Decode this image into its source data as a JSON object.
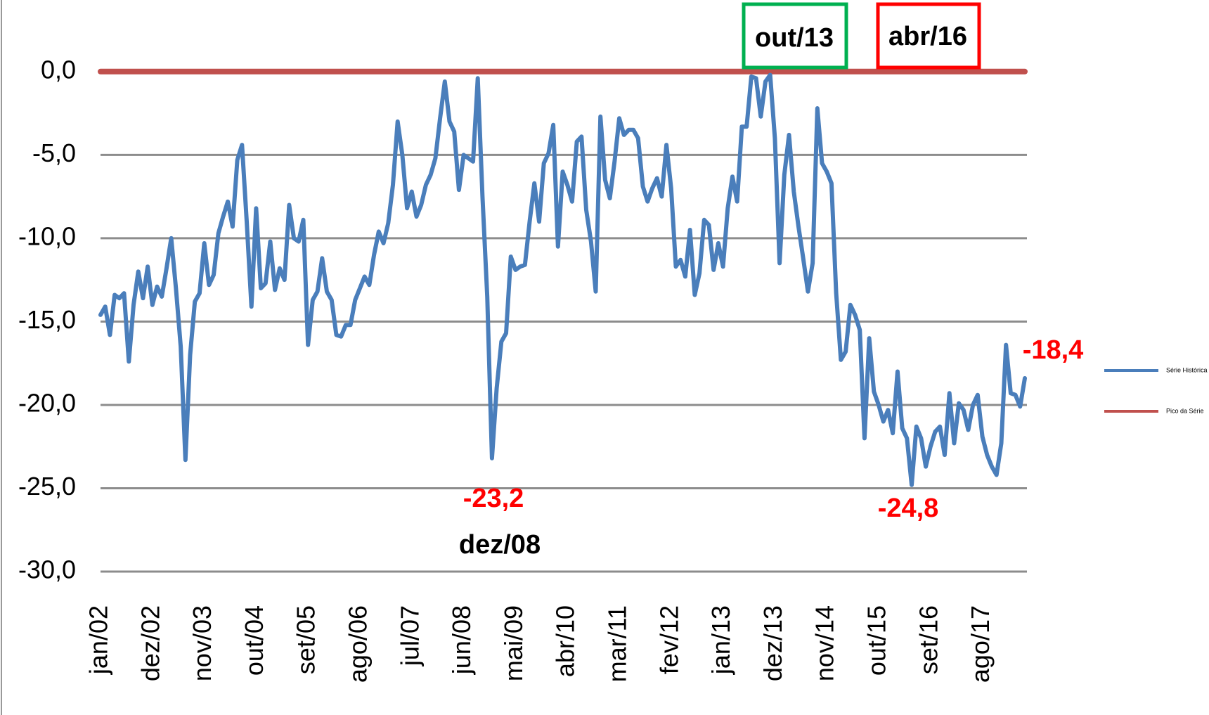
{
  "chart_data": {
    "type": "line",
    "categories": [
      "jan/02",
      null,
      null,
      null,
      null,
      null,
      null,
      null,
      null,
      null,
      null,
      "dez/02",
      null,
      null,
      null,
      null,
      null,
      null,
      null,
      null,
      null,
      null,
      "nov/03",
      null,
      null,
      null,
      null,
      null,
      null,
      null,
      null,
      null,
      null,
      "out/04",
      null,
      null,
      null,
      null,
      null,
      null,
      null,
      null,
      null,
      null,
      "set/05",
      null,
      null,
      null,
      null,
      null,
      null,
      null,
      null,
      null,
      null,
      "ago/06",
      null,
      null,
      null,
      null,
      null,
      null,
      null,
      null,
      null,
      null,
      "jul/07",
      null,
      null,
      null,
      null,
      null,
      null,
      null,
      null,
      null,
      null,
      "jun/08",
      null,
      null,
      null,
      null,
      null,
      null,
      null,
      null,
      null,
      null,
      "mai/09",
      null,
      null,
      null,
      null,
      null,
      null,
      null,
      null,
      null,
      null,
      "abr/10",
      null,
      null,
      null,
      null,
      null,
      null,
      null,
      null,
      null,
      null,
      "mar/11",
      null,
      null,
      null,
      null,
      null,
      null,
      null,
      null,
      null,
      null,
      "fev/12",
      null,
      null,
      null,
      null,
      null,
      null,
      null,
      null,
      null,
      null,
      "jan/13",
      null,
      null,
      null,
      null,
      null,
      null,
      null,
      null,
      null,
      null,
      "dez/13",
      null,
      null,
      null,
      null,
      null,
      null,
      null,
      null,
      null,
      null,
      "nov/14",
      null,
      null,
      null,
      null,
      null,
      null,
      null,
      null,
      null,
      null,
      "out/15",
      null,
      null,
      null,
      null,
      null,
      null,
      null,
      null,
      null,
      null,
      "set/16",
      null,
      null,
      null,
      null,
      null,
      null,
      null,
      null,
      null,
      null,
      "ago/17",
      null,
      null,
      null,
      null,
      null,
      null,
      null,
      null,
      null
    ],
    "series": [
      {
        "name": "Série Histórica",
        "color": "#4a7ebb",
        "values": [
          -14.6,
          -14.1,
          -15.8,
          -13.4,
          -13.6,
          -13.3,
          -17.4,
          -14.0,
          -12.0,
          -13.6,
          -11.7,
          -14.0,
          -12.9,
          -13.5,
          -11.8,
          -10.0,
          -13.0,
          -16.5,
          -23.3,
          -17.0,
          -13.8,
          -13.3,
          -10.3,
          -12.8,
          -12.2,
          -9.7,
          -8.7,
          -7.8,
          -9.3,
          -5.3,
          -4.4,
          -9.0,
          -14.1,
          -8.2,
          -13.0,
          -12.7,
          -10.2,
          -13.1,
          -11.8,
          -12.5,
          -8.0,
          -10.0,
          -10.2,
          -8.9,
          -16.4,
          -13.7,
          -13.2,
          -11.2,
          -13.2,
          -13.7,
          -15.8,
          -15.9,
          -15.2,
          -15.2,
          -13.7,
          -13.0,
          -12.3,
          -12.8,
          -11.0,
          -9.6,
          -10.3,
          -9.1,
          -6.8,
          -3.0,
          -5.0,
          -8.2,
          -7.2,
          -8.7,
          -8.0,
          -6.8,
          -6.2,
          -5.2,
          -2.8,
          -0.6,
          -3.0,
          -3.6,
          -7.1,
          -5.0,
          -5.2,
          -5.4,
          -0.4,
          -7.5,
          -13.5,
          -23.2,
          -19.0,
          -16.2,
          -15.7,
          -11.1,
          -11.9,
          -11.7,
          -11.6,
          -9.0,
          -6.7,
          -9.0,
          -5.5,
          -4.9,
          -3.2,
          -10.5,
          -6.0,
          -6.8,
          -7.8,
          -4.2,
          -3.9,
          -8.3,
          -10.2,
          -13.2,
          -2.7,
          -6.5,
          -7.6,
          -5.4,
          -2.8,
          -3.8,
          -3.5,
          -3.5,
          -4.0,
          -6.9,
          -7.8,
          -7.0,
          -6.4,
          -7.5,
          -4.4,
          -7.0,
          -11.7,
          -11.3,
          -12.3,
          -9.5,
          -13.4,
          -12.1,
          -8.9,
          -9.2,
          -11.9,
          -10.3,
          -11.7,
          -8.2,
          -6.3,
          -7.8,
          -3.3,
          -3.3,
          -0.3,
          -0.4,
          -2.7,
          -0.6,
          -0.2,
          -4.0,
          -11.5,
          -6.2,
          -3.8,
          -7.2,
          -9.3,
          -11.2,
          -13.2,
          -11.5,
          -2.2,
          -5.5,
          -6.0,
          -6.7,
          -13.3,
          -17.3,
          -16.8,
          -14.0,
          -14.6,
          -15.5,
          -22.0,
          -16.0,
          -19.2,
          -20.0,
          -21.0,
          -20.3,
          -21.7,
          -18.0,
          -21.4,
          -22.0,
          -24.8,
          -21.3,
          -22.0,
          -23.7,
          -22.5,
          -21.6,
          -21.3,
          -23.0,
          -19.3,
          -22.3,
          -19.9,
          -20.3,
          -21.5,
          -20.0,
          -19.4,
          -21.9,
          -23.0,
          -23.7,
          -24.2,
          -22.3,
          -16.4,
          -19.3,
          -19.4,
          -20.1,
          -18.4
        ]
      },
      {
        "name": "Pico da Série",
        "color": "#c0504d",
        "values": [
          0,
          0,
          0,
          0,
          0,
          0,
          0,
          0,
          0,
          0,
          0,
          0,
          0,
          0,
          0,
          0,
          0,
          0,
          0,
          0,
          0,
          0,
          0,
          0,
          0,
          0,
          0,
          0,
          0,
          0,
          0,
          0,
          0,
          0,
          0,
          0,
          0,
          0,
          0,
          0,
          0,
          0,
          0,
          0,
          0,
          0,
          0,
          0,
          0,
          0,
          0,
          0,
          0,
          0,
          0,
          0,
          0,
          0,
          0,
          0,
          0,
          0,
          0,
          0,
          0,
          0,
          0,
          0,
          0,
          0,
          0,
          0,
          0,
          0,
          0,
          0,
          0,
          0,
          0,
          0,
          0,
          0,
          0,
          0,
          0,
          0,
          0,
          0,
          0,
          0,
          0,
          0,
          0,
          0,
          0,
          0,
          0,
          0,
          0,
          0,
          0,
          0,
          0,
          0,
          0,
          0,
          0,
          0,
          0,
          0,
          0,
          0,
          0,
          0,
          0,
          0,
          0,
          0,
          0,
          0,
          0,
          0,
          0,
          0,
          0,
          0,
          0,
          0,
          0,
          0,
          0,
          0,
          0,
          0,
          0,
          0,
          0,
          0,
          0,
          0,
          0,
          0,
          0,
          0,
          0,
          0,
          0,
          0,
          0,
          0,
          0,
          0,
          0,
          0,
          0,
          0,
          0,
          0,
          0,
          0,
          0,
          0,
          0,
          0,
          0,
          0,
          0,
          0,
          0,
          0,
          0,
          0,
          0,
          0,
          0,
          0,
          0,
          0,
          0,
          0,
          0,
          0,
          0,
          0,
          0,
          0,
          0,
          0,
          0,
          0,
          0,
          0,
          0,
          0,
          0,
          0,
          0
        ]
      }
    ],
    "ylim": [
      -30,
      4
    ],
    "yticks": [
      {
        "value": 0,
        "label": "0,0"
      },
      {
        "value": -5,
        "label": "-5,0"
      },
      {
        "value": -10,
        "label": "-10,0"
      },
      {
        "value": -15,
        "label": "-15,0"
      },
      {
        "value": -20,
        "label": "-20,0"
      },
      {
        "value": -25,
        "label": "-25,0"
      },
      {
        "value": -30,
        "label": "-30,0"
      }
    ],
    "grid": true,
    "legend": "right",
    "annotations": [
      {
        "text": "-23,2",
        "color": "#ff0000"
      },
      {
        "text": "dez/08",
        "color": "#000000"
      },
      {
        "text": "out/13",
        "color": "#000000",
        "box": "#00b050"
      },
      {
        "text": "abr/16",
        "color": "#000000",
        "box": "#ff0000"
      },
      {
        "text": "-24,8",
        "color": "#ff0000"
      },
      {
        "text": "-18,4",
        "color": "#ff0000"
      }
    ]
  }
}
